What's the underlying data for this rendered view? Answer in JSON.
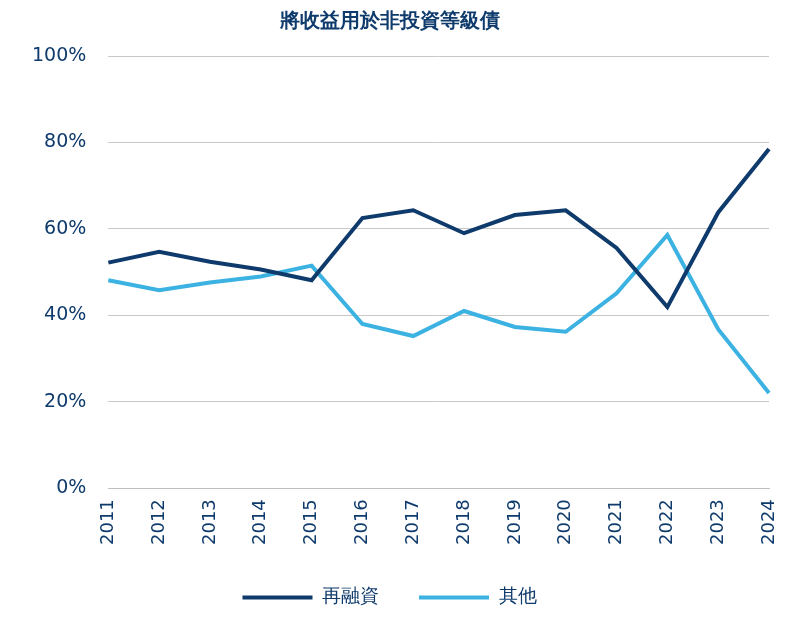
{
  "chart_data": {
    "type": "line",
    "title": "將收益用於非投資等級債",
    "categories": [
      "2011",
      "2012",
      "2013",
      "2014",
      "2015",
      "2016",
      "2017",
      "2018",
      "2019",
      "2020",
      "2021",
      "2022",
      "2023",
      "2024"
    ],
    "series": [
      {
        "name": "再融資",
        "color": "#0e3a6c",
        "values": [
          52.2,
          54.7,
          52.4,
          50.6,
          48.1,
          62.5,
          64.3,
          59.0,
          63.2,
          64.3,
          55.6,
          41.9,
          63.8,
          78.5
        ]
      },
      {
        "name": "其他",
        "color": "#3bb2e2",
        "values": [
          48.1,
          45.8,
          47.6,
          49.0,
          51.5,
          38.0,
          35.2,
          41.0,
          37.3,
          36.2,
          45.1,
          58.6,
          36.8,
          22.0
        ]
      }
    ],
    "ylim": [
      0,
      100
    ],
    "yticks": [
      {
        "value": 0,
        "label": "0%"
      },
      {
        "value": 20,
        "label": "20%"
      },
      {
        "value": 40,
        "label": "40%"
      },
      {
        "value": 60,
        "label": "60%"
      },
      {
        "value": 80,
        "label": "80%"
      },
      {
        "value": 100,
        "label": "100%"
      }
    ],
    "grid": true,
    "legend": "bottom"
  }
}
